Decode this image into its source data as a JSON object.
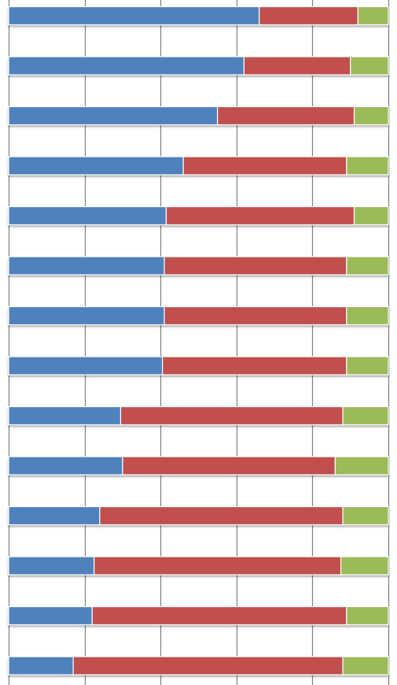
{
  "chart_data": {
    "type": "bar",
    "orientation": "horizontal",
    "stacking": "percent",
    "grid": true,
    "xlim": [
      0,
      100
    ],
    "grid_values": [
      0,
      20,
      40,
      60,
      80,
      100
    ],
    "colors": {
      "series_1": "#4f81bd",
      "series_2": "#c0504d",
      "series_3": "#9bbb59",
      "grid": "#808080"
    },
    "series": [
      {
        "values": [
          66,
          62,
          55,
          46,
          41.5,
          41,
          41,
          40.5,
          29.5,
          30,
          24,
          22.5,
          22,
          17
        ]
      },
      {
        "values": [
          26,
          28,
          36,
          43,
          49.5,
          48,
          48,
          48.5,
          58.5,
          56,
          64,
          65,
          67,
          71
        ]
      },
      {
        "values": [
          8,
          10,
          9,
          11,
          9,
          11,
          11,
          11,
          12,
          14,
          12,
          12.5,
          11,
          12
        ]
      }
    ]
  }
}
